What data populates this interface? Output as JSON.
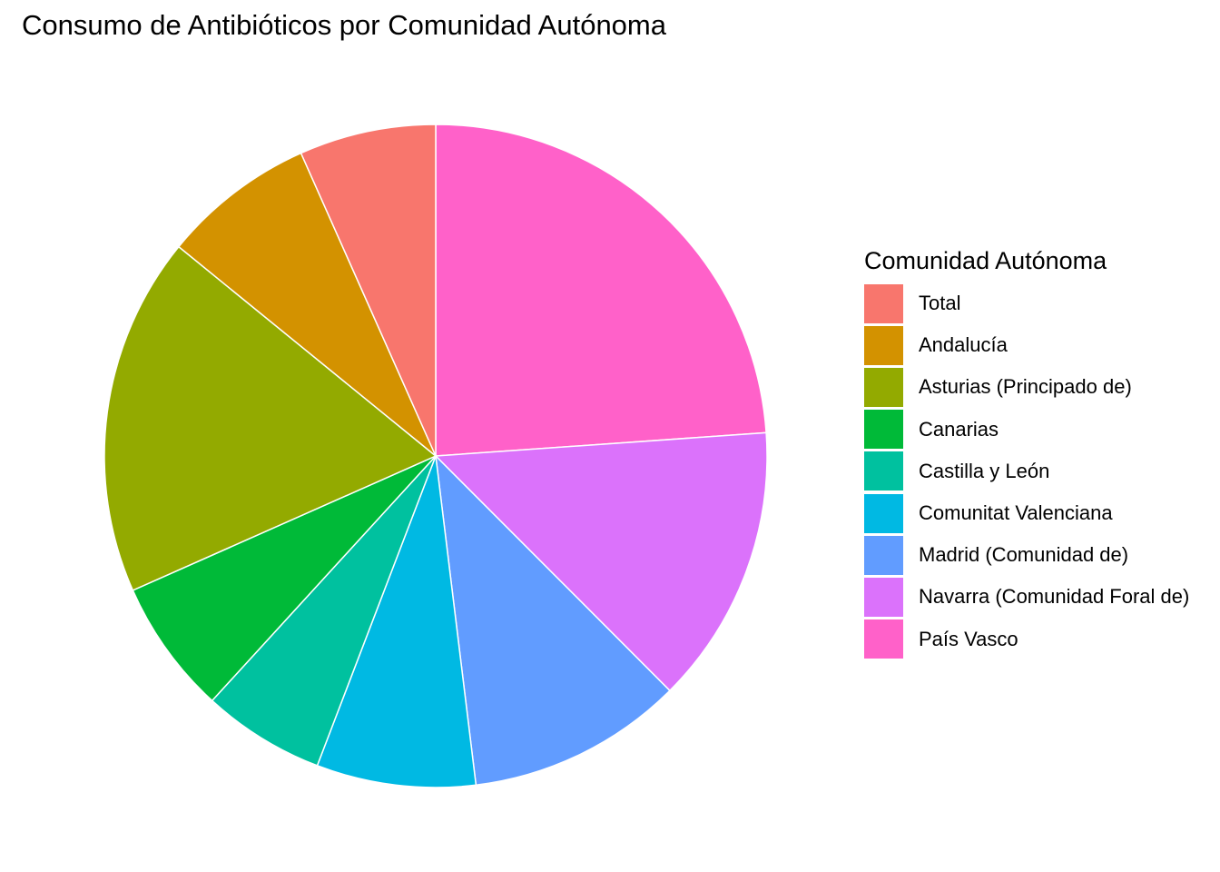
{
  "chart_data": {
    "type": "pie",
    "title": "Consumo de Antibióticos por Comunidad Autónoma",
    "legend_title": "Comunidad Autónoma",
    "legend_position": "right",
    "direction": "clockwise",
    "start": "top",
    "slices": [
      {
        "label": "País Vasco",
        "value": 24.0,
        "color": "#FF61C9"
      },
      {
        "label": "Navarra (Comunidad Foral de)",
        "value": 13.7,
        "color": "#DB72FB"
      },
      {
        "label": "Madrid (Comunidad de)",
        "value": 10.6,
        "color": "#619CFF"
      },
      {
        "label": "Comunitat Valenciana",
        "value": 7.8,
        "color": "#00B9E3"
      },
      {
        "label": "Castilla y León",
        "value": 6.0,
        "color": "#00C19F"
      },
      {
        "label": "Canarias",
        "value": 6.6,
        "color": "#00BA38"
      },
      {
        "label": "Asturias (Principado de)",
        "value": 17.6,
        "color": "#93AA00"
      },
      {
        "label": "Andalucía",
        "value": 7.5,
        "color": "#D39200"
      },
      {
        "label": "Total",
        "value": 6.7,
        "color": "#F8766D"
      }
    ],
    "legend_order": [
      "Total",
      "Andalucía",
      "Asturias (Principado de)",
      "Canarias",
      "Castilla y León",
      "Comunitat Valenciana",
      "Madrid (Comunidad de)",
      "Navarra (Comunidad Foral de)",
      "País Vasco"
    ]
  }
}
